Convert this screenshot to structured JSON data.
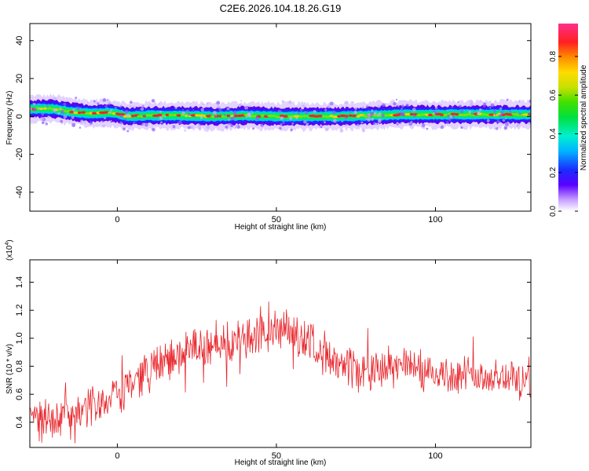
{
  "title": "C2E6.2026.104.18.26.G19",
  "chart_data": [
    {
      "type": "heatmap",
      "xlabel": "Height of straight line (km)",
      "ylabel": "Frequency (Hz)",
      "xlim": [
        -27.5,
        130
      ],
      "ylim": [
        -50,
        49
      ],
      "xticks": [
        0,
        50,
        100
      ],
      "yticks": [
        -40,
        -20,
        0,
        20,
        40
      ],
      "colorbar": {
        "label": "Normalized spectral amplitude",
        "range": [
          0,
          0.97
        ],
        "ticks": [
          "0.0",
          "0.2",
          "0.4",
          "0.6",
          "0.8"
        ]
      },
      "band_center_hz": [
        {
          "x": -27,
          "y": 4
        },
        {
          "x": -20,
          "y": 4
        },
        {
          "x": -15,
          "y": 2.5
        },
        {
          "x": -8,
          "y": 1.5
        },
        {
          "x": -3,
          "y": 2
        },
        {
          "x": 0,
          "y": 1.5
        },
        {
          "x": 3,
          "y": 0
        },
        {
          "x": 10,
          "y": 0.5
        },
        {
          "x": 20,
          "y": 0.5
        },
        {
          "x": 30,
          "y": 0
        },
        {
          "x": 40,
          "y": 0.5
        },
        {
          "x": 50,
          "y": 0
        },
        {
          "x": 60,
          "y": 0
        },
        {
          "x": 70,
          "y": 0
        },
        {
          "x": 80,
          "y": 0.5
        },
        {
          "x": 90,
          "y": 1
        },
        {
          "x": 100,
          "y": 1
        },
        {
          "x": 110,
          "y": 1
        },
        {
          "x": 120,
          "y": 1
        },
        {
          "x": 130,
          "y": 1
        }
      ]
    },
    {
      "type": "line",
      "xlabel": "Height of straight line (km)",
      "ylabel": "SNR (10 * v/v)",
      "yscale_label": "(x10",
      "yscale_exp": "4",
      "yscale_close": ")",
      "xlim": [
        -27.5,
        130
      ],
      "ylim": [
        0.22,
        1.56
      ],
      "xticks": [
        0,
        50,
        100
      ],
      "yticks": [
        "0.4",
        "0.6",
        "0.8",
        "1.0",
        "1.2",
        "1.4"
      ],
      "series": [
        {
          "color": "#e8262c",
          "trend_x": [
            -27.5,
            -15,
            -5,
            0,
            10,
            25,
            40,
            50,
            60,
            65,
            70,
            80,
            90,
            100,
            110,
            120,
            130
          ],
          "trend_y": [
            0.42,
            0.45,
            0.55,
            0.62,
            0.78,
            0.92,
            1.0,
            1.05,
            1.0,
            0.9,
            0.78,
            0.78,
            0.8,
            0.75,
            0.72,
            0.72,
            0.72
          ],
          "amplitude": 0.13,
          "n_points": 800
        }
      ]
    }
  ]
}
